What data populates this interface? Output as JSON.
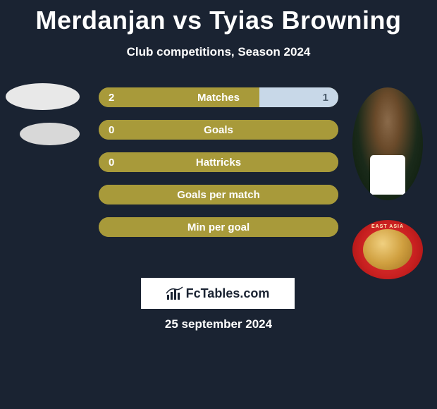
{
  "header": {
    "title": "Merdanjan vs Tyias Browning",
    "subtitle": "Club competitions, Season 2024"
  },
  "branding": {
    "text": "FcTables.com"
  },
  "date": "25 september 2024",
  "colors": {
    "background": "#1a2332",
    "bar_base": "#a89a3a",
    "bar_right_fill": "#c8d8e8",
    "text_white": "#ffffff",
    "text_dark": "#4a5a6a",
    "badge_red": "#e63838",
    "branding_bg": "#ffffff"
  },
  "stats": [
    {
      "label": "Matches",
      "left_value": "2",
      "right_value": "1",
      "left_pct": 67,
      "right_pct": 33
    },
    {
      "label": "Goals",
      "left_value": "0",
      "right_value": "",
      "left_pct": 100,
      "right_pct": 0
    },
    {
      "label": "Hattricks",
      "left_value": "0",
      "right_value": "",
      "left_pct": 100,
      "right_pct": 0
    },
    {
      "label": "Goals per match",
      "left_value": "",
      "right_value": "",
      "left_pct": 100,
      "right_pct": 0
    },
    {
      "label": "Min per goal",
      "left_value": "",
      "right_value": "",
      "left_pct": 100,
      "right_pct": 0
    }
  ],
  "badge": {
    "text": "EAST ASIA"
  }
}
